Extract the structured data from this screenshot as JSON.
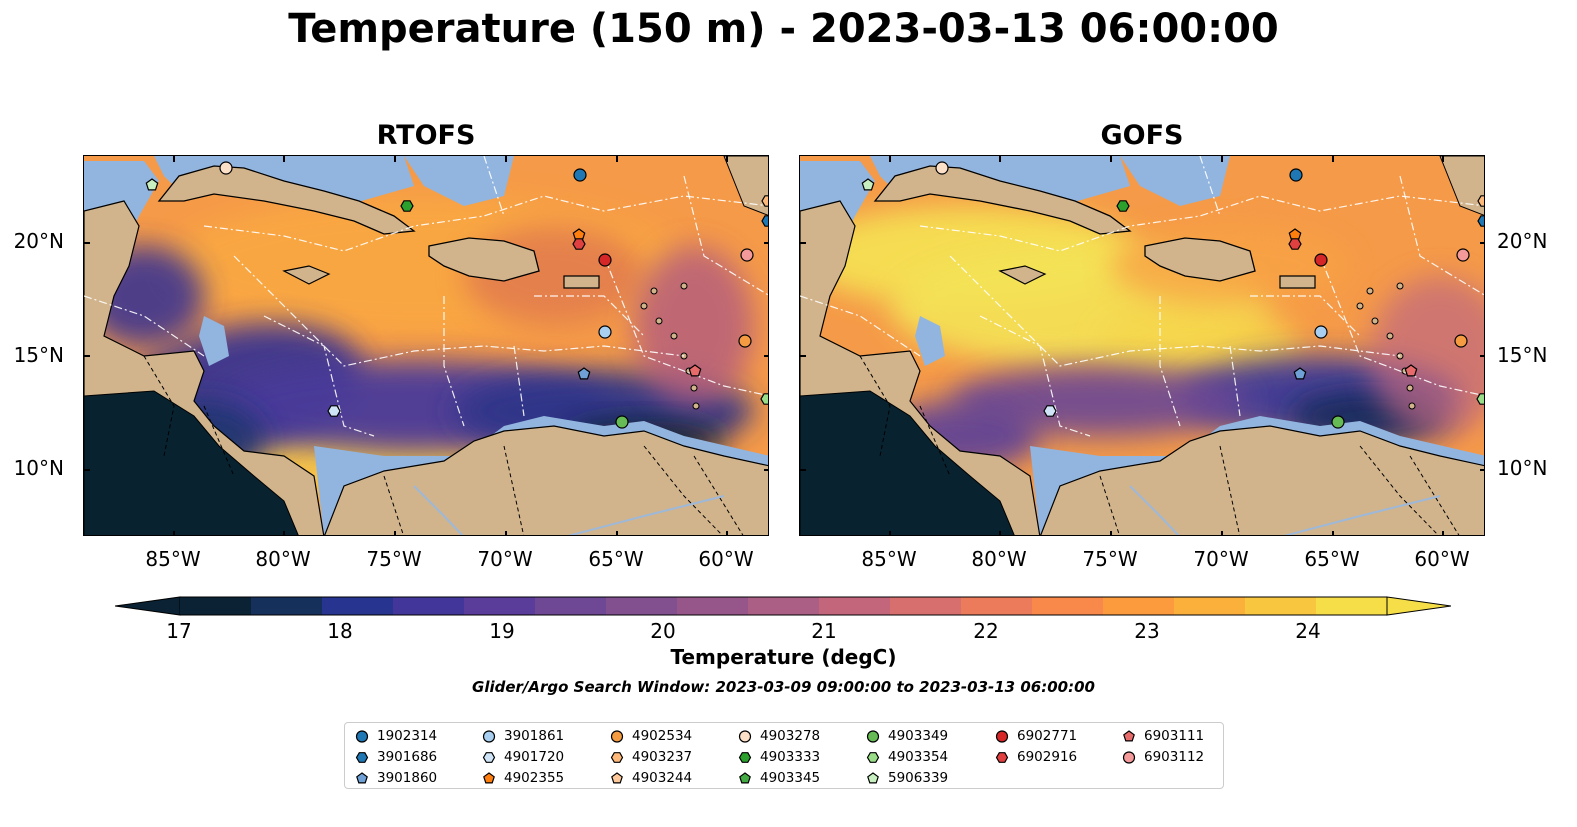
{
  "title": "Temperature (150 m) - 2023-03-13 06:00:00",
  "panels": [
    {
      "title": "RTOFS"
    },
    {
      "title": "GOFS"
    }
  ],
  "axes": {
    "lat_ticks": [
      "20°N",
      "15°N",
      "10°N"
    ],
    "lon_ticks": [
      "85°W",
      "80°W",
      "75°W",
      "70°W",
      "65°W",
      "60°W"
    ]
  },
  "colorbar": {
    "label": "Temperature (degC)",
    "ticks": [
      "17",
      "18",
      "19",
      "20",
      "21",
      "22",
      "23",
      "24"
    ],
    "range": [
      17,
      24.5
    ],
    "colors": [
      "#0a2233",
      "#16305c",
      "#283590",
      "#43369a",
      "#5a3c9a",
      "#6e4895",
      "#83508f",
      "#96568a",
      "#ab5f84",
      "#c3667c",
      "#d86f6f",
      "#eb7b5b",
      "#f8894a",
      "#fb9b3e",
      "#fbb03b",
      "#f8c63f",
      "#f5de48"
    ],
    "extend": "both"
  },
  "search_window": "Glider/Argo Search Window: 2023-03-09 09:00:00 to 2023-03-13 06:00:00",
  "legend": {
    "columns": [
      [
        {
          "id": "1902314",
          "shape": "circle",
          "color": "#1f77b4"
        },
        {
          "id": "3901686",
          "shape": "hexagon",
          "color": "#1f77b4"
        },
        {
          "id": "3901860",
          "shape": "pentagon",
          "color": "#6fa0d6"
        }
      ],
      [
        {
          "id": "3901861",
          "shape": "circle",
          "color": "#a8cff0"
        },
        {
          "id": "4901720",
          "shape": "hexagon",
          "color": "#cfe5f7"
        },
        {
          "id": "4902355",
          "shape": "pentagon",
          "color": "#ff7f0e"
        }
      ],
      [
        {
          "id": "4902534",
          "shape": "circle",
          "color": "#f59b42"
        },
        {
          "id": "4903237",
          "shape": "hexagon",
          "color": "#fdb97a"
        },
        {
          "id": "4903244",
          "shape": "pentagon",
          "color": "#fdc99a"
        }
      ],
      [
        {
          "id": "4903278",
          "shape": "circle",
          "color": "#fde0c8"
        },
        {
          "id": "4903333",
          "shape": "hexagon",
          "color": "#2ca02c"
        },
        {
          "id": "4903345",
          "shape": "pentagon",
          "color": "#44aa44"
        }
      ],
      [
        {
          "id": "4903349",
          "shape": "circle",
          "color": "#66bb55"
        },
        {
          "id": "4903354",
          "shape": "hexagon",
          "color": "#99dd88"
        },
        {
          "id": "5906339",
          "shape": "pentagon",
          "color": "#c8efc0"
        }
      ],
      [
        {
          "id": "6902771",
          "shape": "circle",
          "color": "#d62728"
        },
        {
          "id": "6902916",
          "shape": "hexagon",
          "color": "#e04040"
        }
      ],
      [
        {
          "id": "6903111",
          "shape": "pentagon",
          "color": "#e86b6b"
        },
        {
          "id": "6903112",
          "shape": "circle",
          "color": "#f49a9a"
        }
      ]
    ]
  }
}
